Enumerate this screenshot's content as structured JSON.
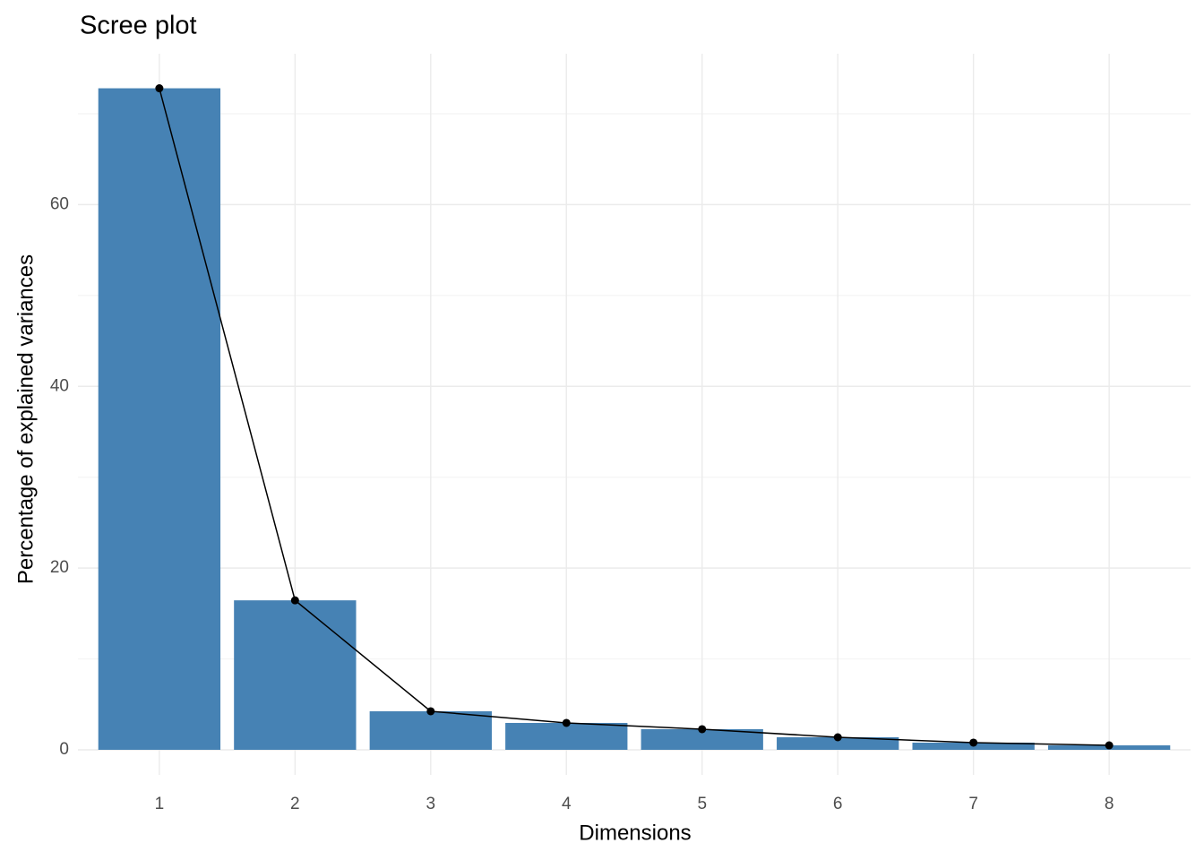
{
  "chart_data": {
    "type": "bar",
    "title": "Scree plot",
    "x_label": "Dimensions",
    "y_label": "Percentage of explained variances",
    "categories": [
      "1",
      "2",
      "3",
      "4",
      "5",
      "6",
      "7",
      "8"
    ],
    "values": [
      72.8,
      16.45,
      4.24,
      2.96,
      2.27,
      1.38,
      0.79,
      0.49
    ],
    "color": "#4682b4",
    "line_color": "#000000",
    "ylim": [
      -2.76,
      76.6
    ],
    "yticks": [
      0,
      20,
      40,
      60
    ],
    "minor_yticks": [
      10,
      30,
      50,
      70
    ],
    "grid": true
  }
}
